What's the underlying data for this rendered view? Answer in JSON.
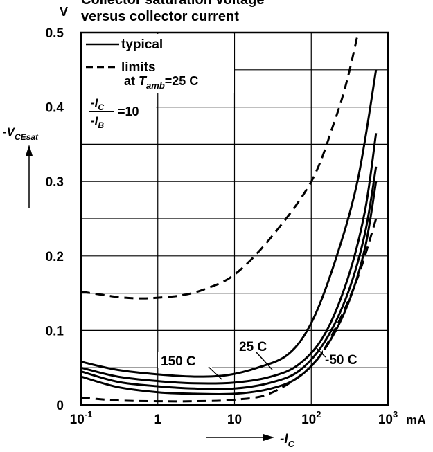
{
  "chart_data": {
    "type": "line",
    "title": "Collector saturation voltage versus collector current",
    "title_lines": [
      "Collector saturation voltage",
      "versus collector current"
    ],
    "x_scale": "log",
    "x_range": [
      0.1,
      1000
    ],
    "y_range": [
      0,
      0.5
    ],
    "grid": true,
    "x_ticks": [
      {
        "value": 0.1,
        "base": "10",
        "exp": "-1"
      },
      {
        "value": 1,
        "base": "1",
        "exp": ""
      },
      {
        "value": 10,
        "base": "10",
        "exp": ""
      },
      {
        "value": 100,
        "base": "10",
        "exp": "2"
      },
      {
        "value": 1000,
        "base": "10",
        "exp": "3"
      }
    ],
    "x_unit": "mA",
    "y_ticks": [
      {
        "value": 0,
        "label": "0"
      },
      {
        "value": 0.1,
        "label": "0.1"
      },
      {
        "value": 0.2,
        "label": "0.2"
      },
      {
        "value": 0.3,
        "label": "0.3"
      },
      {
        "value": 0.4,
        "label": "0.4"
      },
      {
        "value": 0.5,
        "label": "0.5"
      }
    ],
    "y_unit": "V",
    "x_axis_label": {
      "prefix": "-I",
      "sub": "C"
    },
    "y_axis_label": {
      "prefix": "-V",
      "sub": "CEsat"
    },
    "legend": {
      "typical": "typical",
      "limits": "limits",
      "condition_at": "at",
      "condition_T": "T",
      "condition_sub": "amb",
      "condition_value": "=25 C",
      "ratio_num": "-I",
      "ratio_num_sub": "C",
      "ratio_den": "-I",
      "ratio_den_sub": "B",
      "ratio_value": "=10"
    },
    "series_labels": {
      "s150": "150 C",
      "s25": "25 C",
      "s_50": "-50 C"
    },
    "series": [
      {
        "id": "s150",
        "style": "solid",
        "x": [
          0.1,
          0.3,
          1,
          3,
          8,
          20,
          50,
          100,
          200,
          400,
          700
        ],
        "y": [
          0.058,
          0.047,
          0.041,
          0.038,
          0.04,
          0.05,
          0.068,
          0.11,
          0.19,
          0.3,
          0.45
        ]
      },
      {
        "id": "s25",
        "style": "solid",
        "x": [
          0.1,
          0.3,
          1,
          3,
          10,
          30,
          70,
          150,
          300,
          500,
          700
        ],
        "y": [
          0.05,
          0.038,
          0.032,
          0.029,
          0.03,
          0.038,
          0.055,
          0.095,
          0.17,
          0.26,
          0.365
        ]
      },
      {
        "id": "s_50",
        "style": "solid",
        "x": [
          0.1,
          0.3,
          1,
          3,
          10,
          30,
          70,
          150,
          300,
          500,
          700
        ],
        "y": [
          0.045,
          0.031,
          0.025,
          0.022,
          0.022,
          0.03,
          0.046,
          0.085,
          0.15,
          0.23,
          0.32
        ]
      },
      {
        "id": "typ_low",
        "style": "solid",
        "x": [
          0.1,
          0.3,
          1,
          3,
          10,
          30,
          70,
          150,
          300,
          500,
          700
        ],
        "y": [
          0.038,
          0.024,
          0.017,
          0.015,
          0.015,
          0.022,
          0.038,
          0.075,
          0.135,
          0.21,
          0.3
        ]
      },
      {
        "id": "limit_upper",
        "style": "dashed",
        "x": [
          0.1,
          0.3,
          0.6,
          1,
          2,
          4,
          10,
          30,
          100,
          200,
          300,
          450
        ],
        "y": [
          0.152,
          0.145,
          0.143,
          0.144,
          0.147,
          0.155,
          0.175,
          0.225,
          0.3,
          0.38,
          0.44,
          0.52
        ]
      },
      {
        "id": "limit_lower",
        "style": "dashed",
        "x": [
          0.1,
          0.3,
          1,
          3,
          10,
          30,
          100,
          200,
          400,
          700
        ],
        "y": [
          0.01,
          0.006,
          0.005,
          0.005,
          0.007,
          0.016,
          0.052,
          0.1,
          0.17,
          0.25
        ]
      }
    ]
  }
}
